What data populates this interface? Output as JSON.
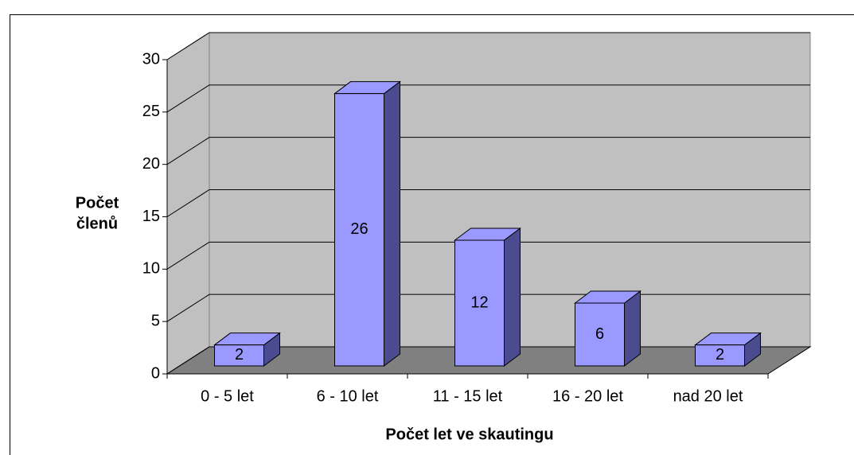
{
  "chart_data": {
    "type": "bar3d",
    "xlabel": "Počet let ve skautingu",
    "ylabel": [
      "Počet",
      "členů"
    ],
    "categories": [
      "0 - 5 let",
      "6 - 10 let",
      "11 - 15 let",
      "16 - 20 let",
      "nad 20 let"
    ],
    "values": [
      2,
      26,
      12,
      6,
      2
    ],
    "color": "#9999ff",
    "side_color": "#4b4b8f",
    "ylim": [
      0,
      30
    ],
    "yticks": [
      0,
      5,
      10,
      15,
      20,
      25,
      30
    ],
    "grid": true
  }
}
